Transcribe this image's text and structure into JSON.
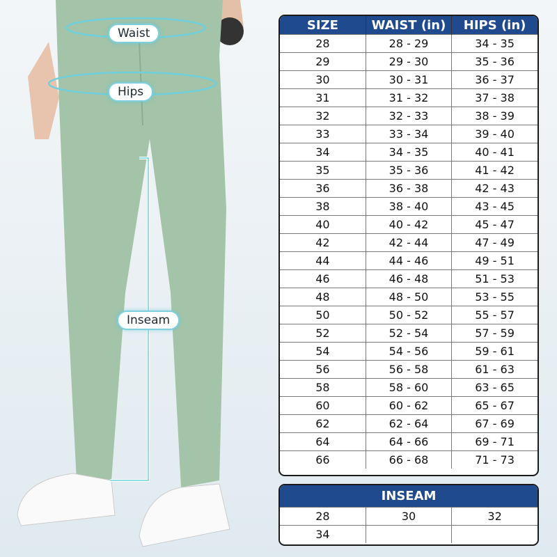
{
  "labels": {
    "waist": "Waist",
    "hips": "Hips",
    "inseam": "Inseam"
  },
  "size_chart": {
    "headers": [
      "SIZE",
      "WAIST (in)",
      "HIPS (in)"
    ],
    "rows": [
      [
        "28",
        "28 - 29",
        "34 - 35"
      ],
      [
        "29",
        "29 - 30",
        "35 - 36"
      ],
      [
        "30",
        "30 - 31",
        "36 - 37"
      ],
      [
        "31",
        "31 - 32",
        "37 - 38"
      ],
      [
        "32",
        "32 - 33",
        "38 - 39"
      ],
      [
        "33",
        "33 - 34",
        "39 - 40"
      ],
      [
        "34",
        "34 - 35",
        "40 - 41"
      ],
      [
        "35",
        "35 - 36",
        "41 - 42"
      ],
      [
        "36",
        "36 - 38",
        "42 - 43"
      ],
      [
        "38",
        "38 - 40",
        "43 - 45"
      ],
      [
        "40",
        "40 - 42",
        "45 - 47"
      ],
      [
        "42",
        "42 - 44",
        "47 - 49"
      ],
      [
        "44",
        "44 - 46",
        "49 - 51"
      ],
      [
        "46",
        "46 - 48",
        "51 - 53"
      ],
      [
        "48",
        "48 - 50",
        "53 - 55"
      ],
      [
        "50",
        "50 - 52",
        "55 - 57"
      ],
      [
        "52",
        "52 - 54",
        "57 - 59"
      ],
      [
        "54",
        "54 - 56",
        "59 - 61"
      ],
      [
        "56",
        "56 - 58",
        "61 - 63"
      ],
      [
        "58",
        "58 - 60",
        "63 - 65"
      ],
      [
        "60",
        "60 - 62",
        "65 - 67"
      ],
      [
        "62",
        "62 - 64",
        "67 - 69"
      ],
      [
        "64",
        "64 - 66",
        "69 - 71"
      ],
      [
        "66",
        "66 - 68",
        "71 - 73"
      ]
    ]
  },
  "inseam_chart": {
    "header": "INSEAM",
    "rows": [
      [
        "28",
        "30",
        "32"
      ],
      [
        "34",
        "",
        ""
      ]
    ]
  },
  "colors": {
    "header": "#1f4a8e",
    "pants": "#a3c4a8",
    "guide": "#6fd0dc"
  }
}
